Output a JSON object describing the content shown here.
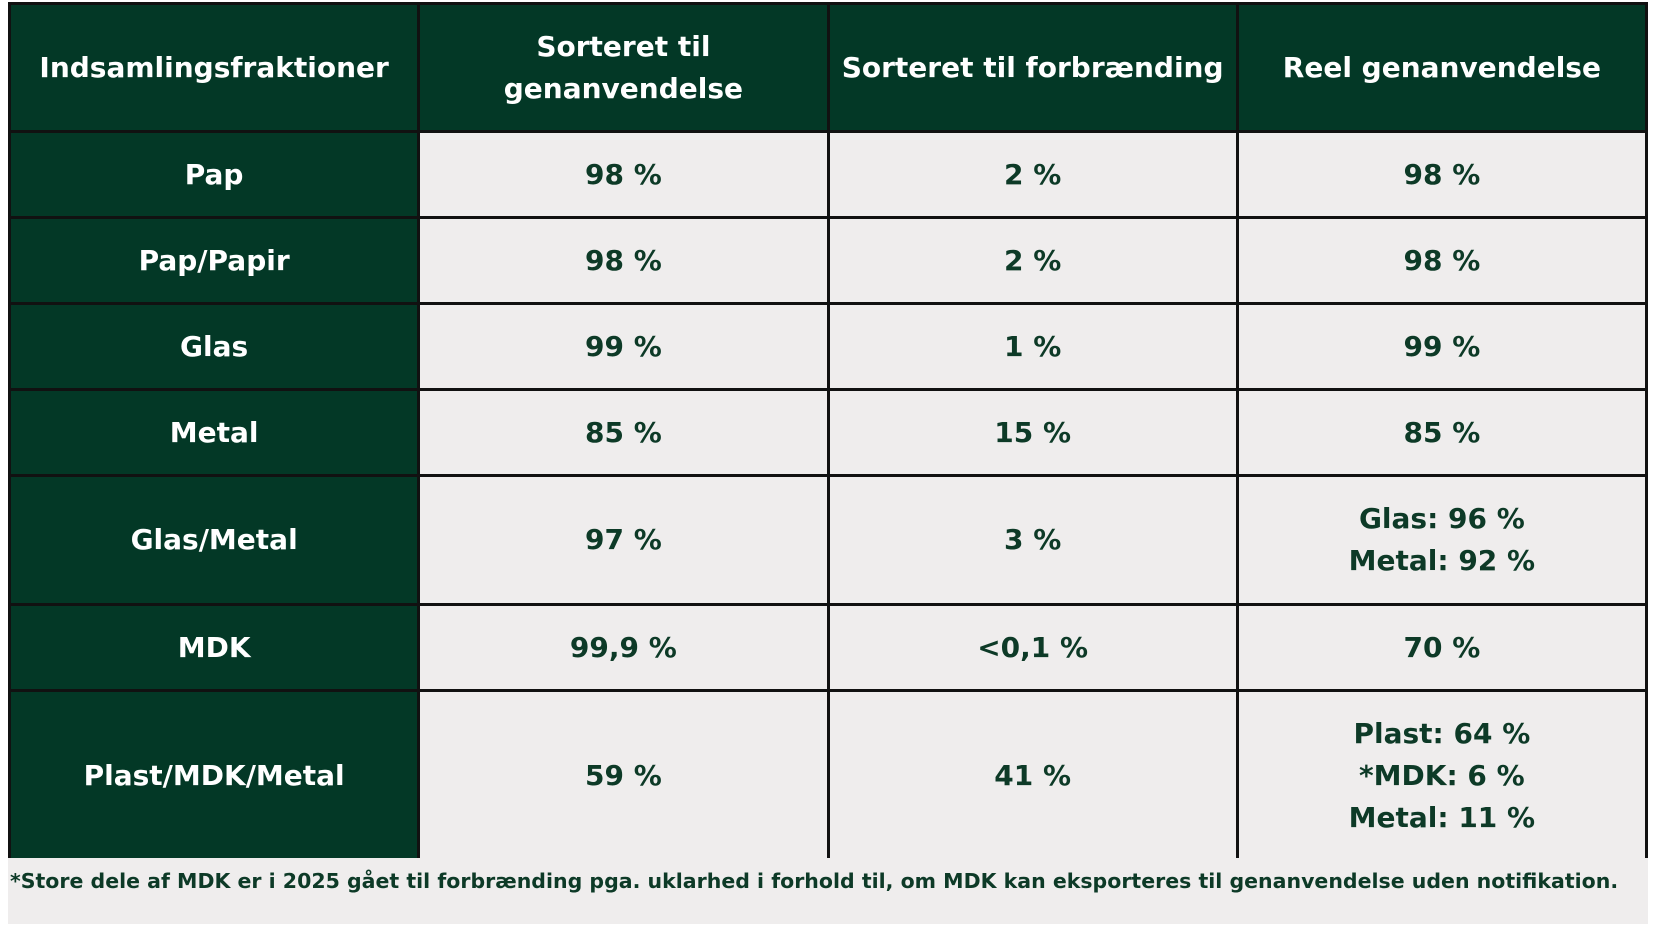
{
  "table": {
    "header": [
      "Indsamlingsfraktioner",
      [
        "Sorteret til",
        "genanvendelse"
      ],
      "Sorteret til forbrænding",
      "Reel genanvendelse"
    ],
    "rows": [
      [
        "Pap",
        "98 %",
        "2 %",
        "98 %"
      ],
      [
        "Pap/Papir",
        "98 %",
        "2 %",
        "98 %"
      ],
      [
        "Glas",
        "99 %",
        "1 %",
        "99 %"
      ],
      [
        "Metal",
        "85 %",
        "15 %",
        "85 %"
      ],
      [
        "Glas/Metal",
        "97 %",
        "3 %",
        [
          "Glas: 96 %",
          "Metal: 92 %"
        ]
      ],
      [
        "MDK",
        "99,9 %",
        "<0,1 %",
        "70 %"
      ],
      [
        "Plast/MDK/Metal",
        "59 %",
        "41 %",
        [
          "Plast: 64 %",
          "*MDK: 6 %",
          "Metal: 11 %"
        ]
      ]
    ]
  },
  "footnote": "*Store dele af MDK er i 2025 gået til forbrænding pga. uklarhed i forhold til, om MDK kan eksporteres til genanvendelse uden notifikation."
}
